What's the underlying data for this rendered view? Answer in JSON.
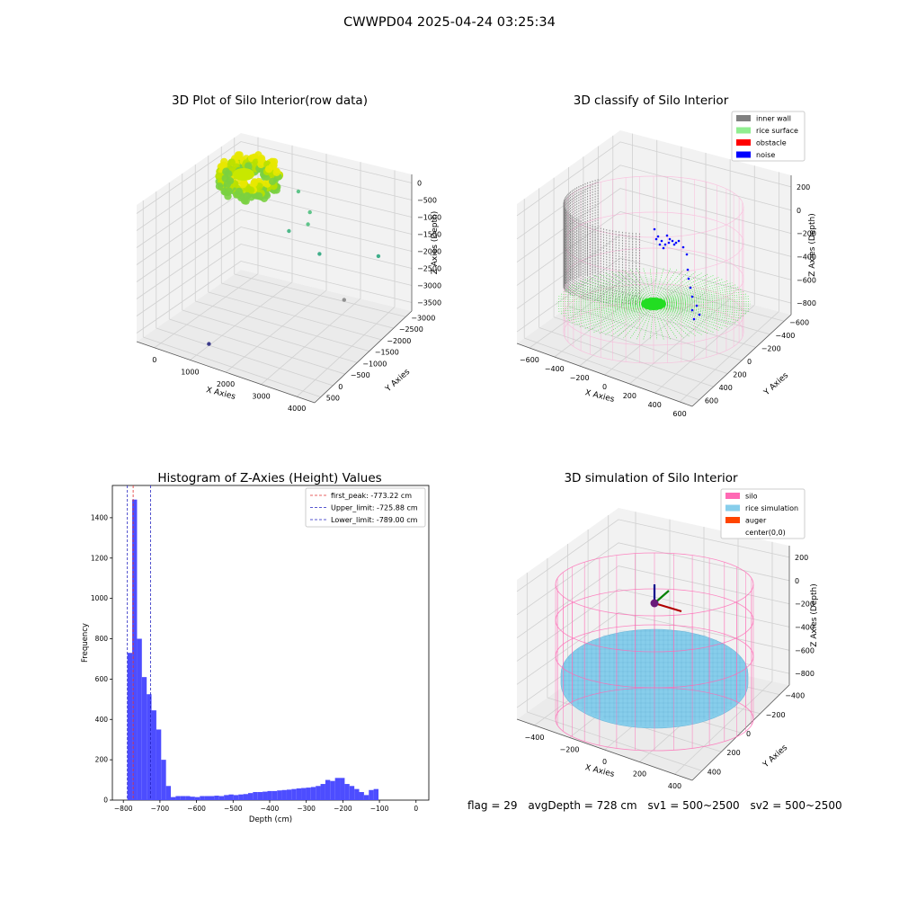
{
  "figure_title": "CWWPD04 2025-04-24 03:25:34",
  "status": {
    "flag": "flag = 29",
    "avg_depth": "avgDepth = 728 cm",
    "sv1": "sv1 = 500~2500",
    "sv2": "sv2 = 500~2500"
  },
  "colors": {
    "hist_bar": "#4d4dff",
    "first_peak": "#e03030",
    "limit_line": "#2020c0",
    "inner_wall": "#808080",
    "rice_surface": "#90ee90",
    "obstacle": "#ff0000",
    "noise": "#0000ff",
    "silo": "#ff69b4",
    "rice_simulation": "#87ceeb",
    "auger": "#ff4500"
  },
  "chart_data": [
    {
      "type": "scatter",
      "title": "3D Plot of Silo Interior(row data)",
      "xlabel": "X Axies",
      "ylabel": "Y Axies",
      "zlabel": "Z Axies (Depth)",
      "x_ticks": [
        "0",
        "1000",
        "2000",
        "3000",
        "4000"
      ],
      "y_ticks": [
        "500",
        "0",
        "−500",
        "−1000",
        "−1500",
        "−2000",
        "−2500",
        "−3000"
      ],
      "z_ticks": [
        "0",
        "−500",
        "−1000",
        "−1500",
        "−2000",
        "−2500",
        "−3000",
        "−3500"
      ],
      "xlim": [
        -500,
        4500
      ],
      "ylim": [
        -3100,
        700
      ],
      "zlim": [
        -3700,
        200
      ],
      "outliers": [
        {
          "x": 1500,
          "y": 200,
          "z": -500
        },
        {
          "x": 1900,
          "y": 100,
          "z": -900
        },
        {
          "x": 2000,
          "y": -100,
          "z": -1100
        },
        {
          "x": 1350,
          "y": 50,
          "z": -1600
        },
        {
          "x": 2400,
          "y": -200,
          "z": -1750
        },
        {
          "x": 3900,
          "y": 0,
          "z": -1400
        },
        {
          "x": 3400,
          "y": -600,
          "z": -2500
        },
        {
          "x": 1300,
          "y": -2800,
          "z": -3300
        }
      ]
    },
    {
      "type": "scatter",
      "title": "3D classify of Silo Interior",
      "xlabel": "X Axies",
      "ylabel": "Y Axies",
      "zlabel": "Z Axies (Depth)",
      "x_ticks": [
        "−600",
        "−400",
        "−200",
        "0",
        "200",
        "400",
        "600"
      ],
      "y_ticks": [
        "600",
        "400",
        "200",
        "0",
        "−200",
        "−400",
        "−600"
      ],
      "z_ticks": [
        "200",
        "0",
        "−200",
        "−400",
        "−600",
        "−800"
      ],
      "xlim": [
        -650,
        650
      ],
      "ylim": [
        -650,
        650
      ],
      "zlim": [
        -900,
        300
      ],
      "legend": [
        "inner wall",
        "rice surface",
        "obstacle",
        "noise"
      ],
      "legend_loc": "top-right"
    },
    {
      "type": "bar",
      "title": "Histogram of Z-Axies (Height) Values",
      "xlabel": "Depth (cm)",
      "ylabel": "Frequency",
      "x_ticks": [
        "−800",
        "−700",
        "−600",
        "−500",
        "−400",
        "−300",
        "−200",
        "−100",
        "0"
      ],
      "y_ticks": [
        "0",
        "200",
        "400",
        "600",
        "800",
        "1000",
        "1200",
        "1400"
      ],
      "xlim": [
        -830,
        35
      ],
      "ylim": [
        0,
        1560
      ],
      "bin_start": -789,
      "bin_width": 13.2,
      "values": [
        730,
        1490,
        800,
        610,
        525,
        445,
        350,
        200,
        70,
        15,
        20,
        20,
        20,
        17,
        15,
        20,
        20,
        20,
        22,
        20,
        25,
        28,
        25,
        28,
        30,
        35,
        40,
        40,
        42,
        45,
        45,
        48,
        50,
        52,
        55,
        58,
        60,
        62,
        65,
        70,
        80,
        100,
        95,
        110,
        110,
        80,
        70,
        55,
        40,
        25,
        50,
        55
      ],
      "vlines": [
        {
          "label": "first_peak: -773.22 cm",
          "x": -773.22,
          "style": "first_peak"
        },
        {
          "label": "Upper_limit: -725.88 cm",
          "x": -725.88,
          "style": "limit"
        },
        {
          "label": "Lower_limit: -789.00 cm",
          "x": -789.0,
          "style": "limit"
        }
      ],
      "legend_loc": "top-right"
    },
    {
      "type": "scatter",
      "title": "3D simulation of Silo Interior",
      "xlabel": "X Axies",
      "ylabel": "Y Axies",
      "zlabel": "Z Axies (Depth)",
      "x_ticks": [
        "−400",
        "−200",
        "0",
        "200",
        "400"
      ],
      "y_ticks": [
        "400",
        "200",
        "0",
        "−200",
        "−400"
      ],
      "z_ticks": [
        "200",
        "0",
        "−200",
        "−400",
        "−600",
        "−800"
      ],
      "xlim": [
        -520,
        520
      ],
      "ylim": [
        -520,
        520
      ],
      "zlim": [
        -950,
        300
      ],
      "legend": [
        "silo",
        "rice simulation",
        "auger",
        "center(0,0)"
      ],
      "legend_loc": "top-right"
    }
  ]
}
